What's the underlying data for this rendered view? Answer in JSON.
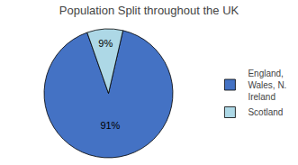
{
  "chart_data": {
    "type": "pie",
    "title": "Population Split throughout the UK",
    "categories": [
      "England,\nWales, N.\nIreland",
      "Scotland"
    ],
    "values": [
      91,
      9
    ],
    "value_labels": [
      "91%",
      "9%"
    ],
    "data_labels": true,
    "colors": [
      "#4472C4",
      "#ADD8E6"
    ],
    "legend": "right"
  }
}
